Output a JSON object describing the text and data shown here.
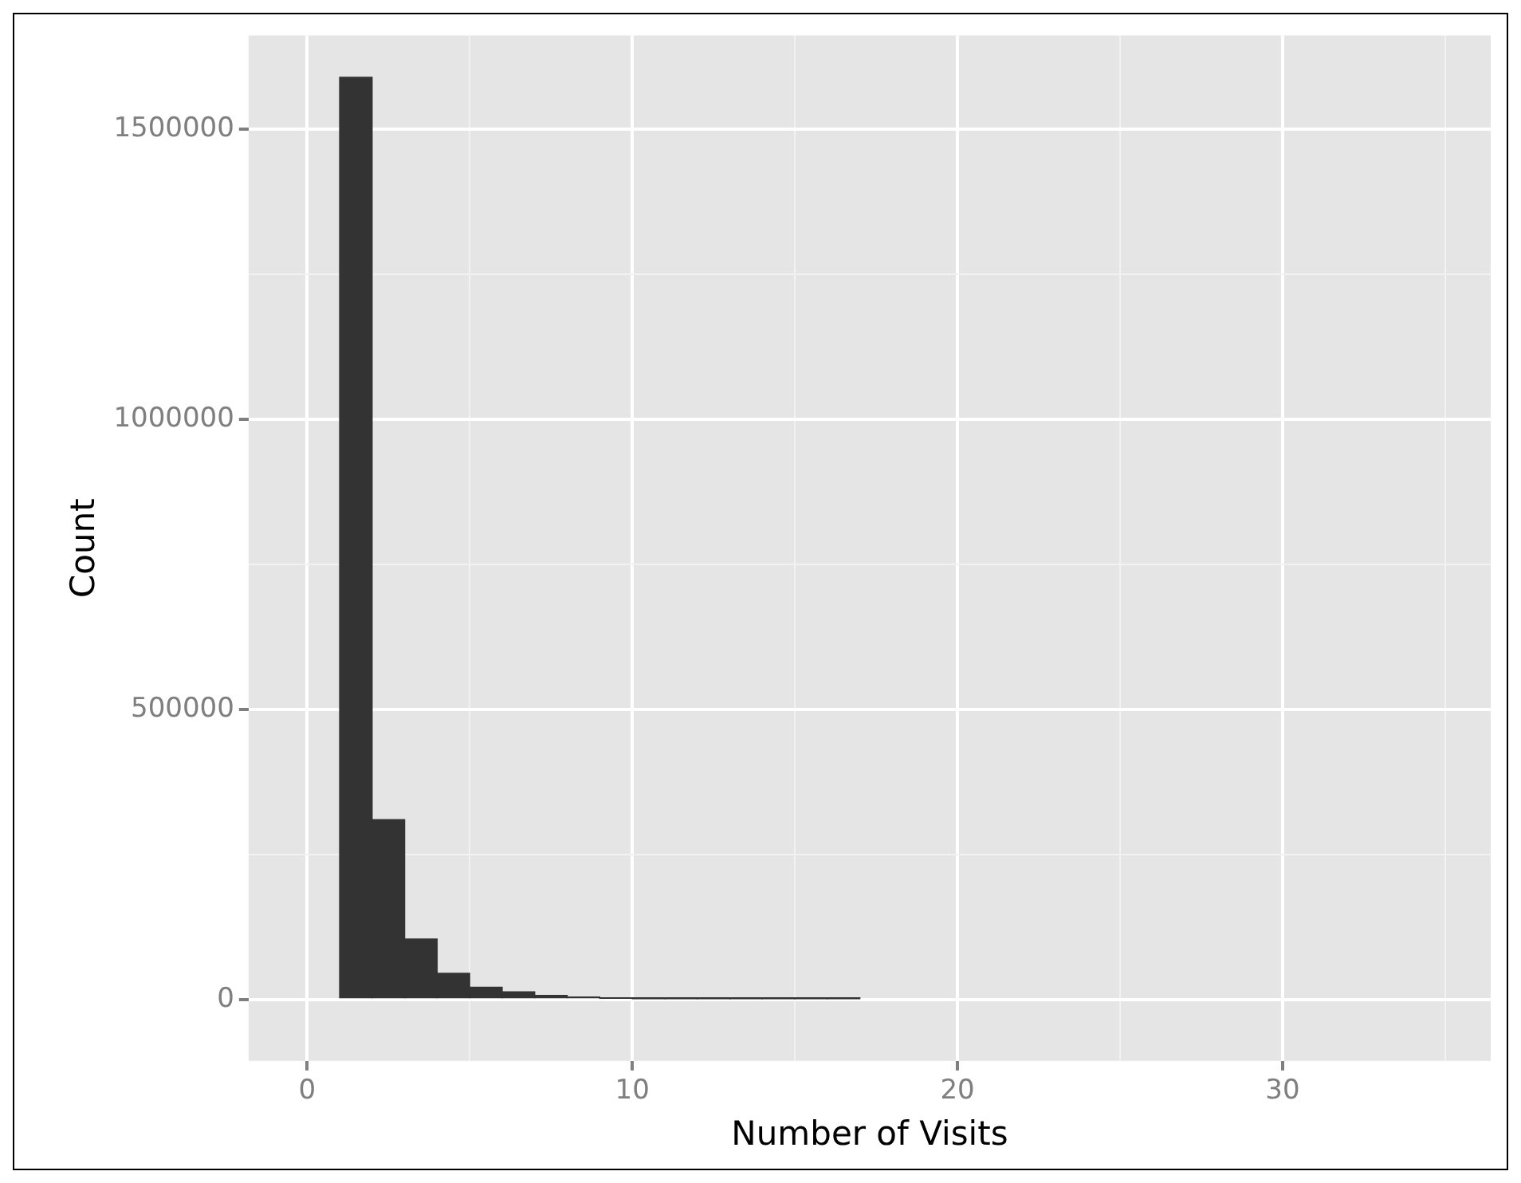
{
  "chart_data": {
    "type": "histogram",
    "xlabel": "Number of Visits",
    "ylabel": "Count",
    "bins": [
      1,
      2,
      3,
      4,
      5,
      6,
      7,
      8,
      9,
      10,
      11,
      12,
      13,
      14,
      15,
      16,
      17
    ],
    "values": [
      1590000,
      310000,
      104000,
      45000,
      21000,
      13000,
      7000,
      4000,
      2000,
      1000,
      1000,
      1000,
      1000,
      1000,
      1000,
      1000
    ],
    "color": "#333333",
    "xlim": [
      -1.8,
      36.4
    ],
    "xticks": [
      0,
      {
        "value": 5,
        "label": null
      },
      10,
      {
        "value": 15,
        "label": null
      },
      20,
      {
        "value": 25,
        "label": null
      },
      30,
      {
        "value": 35,
        "label": null
      }
    ],
    "ylim": [
      -106000,
      1662000
    ],
    "yticks": [
      0,
      {
        "value": 250000,
        "label": null
      },
      500000,
      {
        "value": 750000,
        "label": null
      },
      1000000,
      {
        "value": 1250000,
        "label": null
      },
      1500000
    ],
    "grid": true
  }
}
